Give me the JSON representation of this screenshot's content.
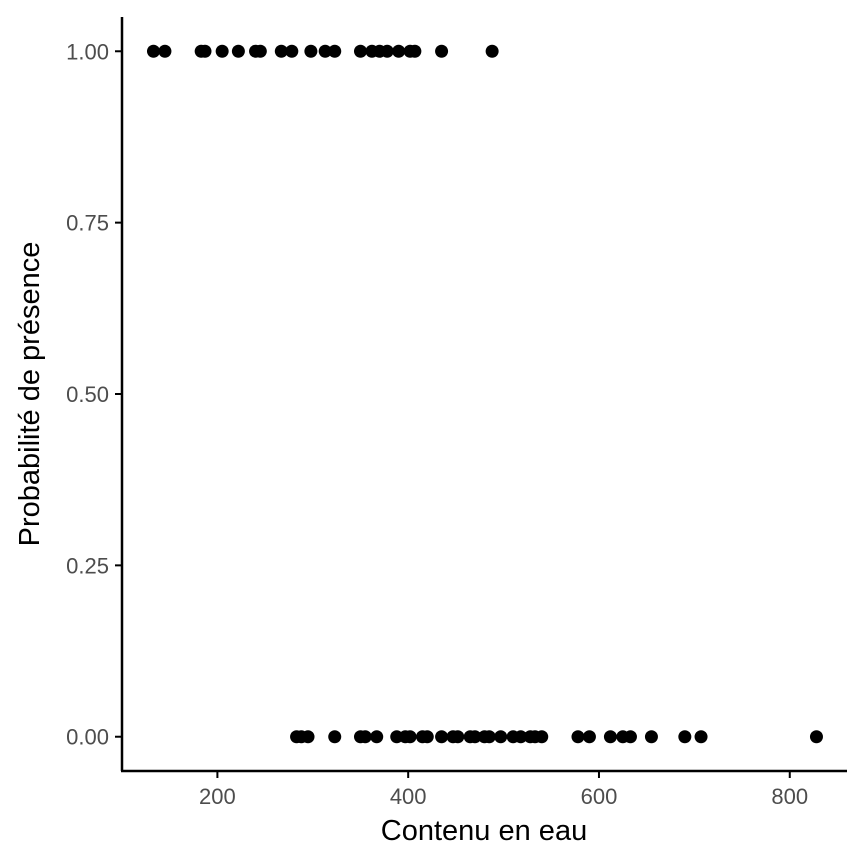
{
  "chart_data": {
    "type": "scatter",
    "title": "",
    "xlabel": "Contenu en eau",
    "ylabel": "Probabilité de présence",
    "xlim": [
      100,
      860
    ],
    "ylim": [
      -0.05,
      1.05
    ],
    "x_ticks": [
      200,
      400,
      600,
      800
    ],
    "x_tick_labels": [
      "200",
      "400",
      "600",
      "800"
    ],
    "y_ticks": [
      0,
      0.25,
      0.5,
      0.75,
      1
    ],
    "y_tick_labels": [
      "0.00",
      "0.25",
      "0.50",
      "0.75",
      "1.00"
    ],
    "grid": false,
    "legend": "none",
    "point_color": "#000000",
    "series": [
      {
        "points": [
          {
            "x": 133,
            "y": 1
          },
          {
            "x": 145,
            "y": 1
          },
          {
            "x": 183,
            "y": 1
          },
          {
            "x": 187,
            "y": 1
          },
          {
            "x": 205,
            "y": 1
          },
          {
            "x": 222,
            "y": 1
          },
          {
            "x": 240,
            "y": 1
          },
          {
            "x": 245,
            "y": 1
          },
          {
            "x": 267,
            "y": 1
          },
          {
            "x": 278,
            "y": 1
          },
          {
            "x": 298,
            "y": 1
          },
          {
            "x": 313,
            "y": 1
          },
          {
            "x": 323,
            "y": 1
          },
          {
            "x": 350,
            "y": 1
          },
          {
            "x": 362,
            "y": 1
          },
          {
            "x": 370,
            "y": 1
          },
          {
            "x": 378,
            "y": 1
          },
          {
            "x": 390,
            "y": 1
          },
          {
            "x": 402,
            "y": 1
          },
          {
            "x": 407,
            "y": 1
          },
          {
            "x": 435,
            "y": 1
          },
          {
            "x": 488,
            "y": 1
          },
          {
            "x": 283,
            "y": 0
          },
          {
            "x": 288,
            "y": 0
          },
          {
            "x": 295,
            "y": 0
          },
          {
            "x": 323,
            "y": 0
          },
          {
            "x": 350,
            "y": 0
          },
          {
            "x": 355,
            "y": 0
          },
          {
            "x": 367,
            "y": 0
          },
          {
            "x": 388,
            "y": 0
          },
          {
            "x": 397,
            "y": 0
          },
          {
            "x": 402,
            "y": 0
          },
          {
            "x": 415,
            "y": 0
          },
          {
            "x": 420,
            "y": 0
          },
          {
            "x": 435,
            "y": 0
          },
          {
            "x": 447,
            "y": 0
          },
          {
            "x": 452,
            "y": 0
          },
          {
            "x": 465,
            "y": 0
          },
          {
            "x": 470,
            "y": 0
          },
          {
            "x": 480,
            "y": 0
          },
          {
            "x": 485,
            "y": 0
          },
          {
            "x": 497,
            "y": 0
          },
          {
            "x": 510,
            "y": 0
          },
          {
            "x": 518,
            "y": 0
          },
          {
            "x": 528,
            "y": 0
          },
          {
            "x": 533,
            "y": 0
          },
          {
            "x": 540,
            "y": 0
          },
          {
            "x": 578,
            "y": 0
          },
          {
            "x": 590,
            "y": 0
          },
          {
            "x": 612,
            "y": 0
          },
          {
            "x": 625,
            "y": 0
          },
          {
            "x": 633,
            "y": 0
          },
          {
            "x": 655,
            "y": 0
          },
          {
            "x": 690,
            "y": 0
          },
          {
            "x": 707,
            "y": 0
          },
          {
            "x": 828,
            "y": 0
          }
        ]
      }
    ]
  }
}
